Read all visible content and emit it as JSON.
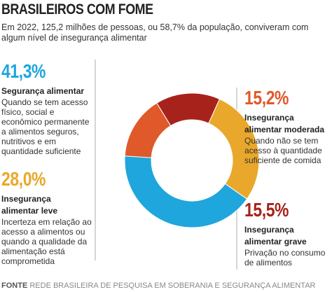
{
  "chart_data": {
    "type": "donut",
    "title": "BRASILEIROS COM FOME",
    "subtitle": "Em 2022, 125,2 milhões de pessoas, ou 58,7% da população, conviveram com algum nível de insegurança alimentar",
    "categories": [
      "Segurança alimentar",
      "Insegurança alimentar moderada",
      "Insegurança alimentar grave",
      "Insegurança alimentar leve"
    ],
    "values": [
      41.3,
      15.2,
      15.5,
      28.0
    ],
    "value_labels": [
      "41,3%",
      "15,2%",
      "15,5%",
      "28,0%"
    ],
    "descriptions": [
      "Quando se tem acesso físico, social e econômico permanente a alimentos seguros, nutritivos e em quantidade suficiente",
      "Quando não se tem acesso à quantidade suficiente de comida",
      "Privação no consumo de alimentos",
      "Incerteza em relação ao acesso a alimentos ou quando a qualidade da alimentação está comprometida"
    ],
    "colors": [
      "#1fa6dc",
      "#e0592a",
      "#a6221b",
      "#e9a82b"
    ],
    "source_label": "FONTE",
    "source": "REDE BRASILEIRA DE PESQUISA EM SOBERANIA E SEGURANÇA ALIMENTAR"
  }
}
